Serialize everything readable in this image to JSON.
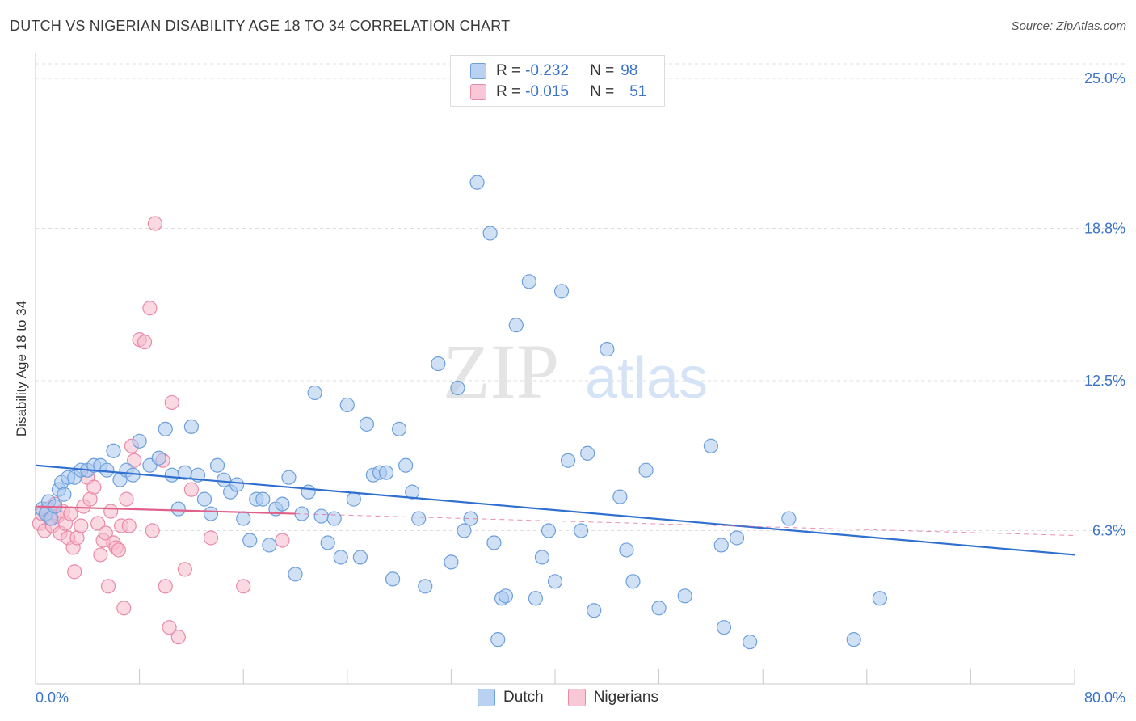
{
  "title": "DUTCH VS NIGERIAN DISABILITY AGE 18 TO 34 CORRELATION CHART",
  "source": "Source: ZipAtlas.com",
  "watermark": {
    "zip": "ZIP",
    "atlas": "atlas"
  },
  "colors": {
    "dutch_fill": "#a9c8ef",
    "dutch_stroke": "#6c9fdc",
    "dutch_line": "#2f6fcf",
    "nigerian_fill": "#f7b9cc",
    "nigerian_stroke": "#e98aa8",
    "nigerian_line": "#e0608a",
    "tick_label": "#3a73c8"
  },
  "legend": {
    "dutch": {
      "r_label": "R =",
      "r_value": "-0.232",
      "n_label": "N =",
      "n_value": "98"
    },
    "nigerians": {
      "r_label": "R =",
      "r_value": "-0.015",
      "n_label": "N =",
      "n_value": "51"
    }
  },
  "chart_data": {
    "type": "scatter",
    "title": "DUTCH VS NIGERIAN DISABILITY AGE 18 TO 34 CORRELATION CHART",
    "xlabel": "",
    "ylabel": "Disability Age 18 to 34",
    "xlim": [
      0,
      80
    ],
    "ylim": [
      0,
      25
    ],
    "x_tick_labels": [
      "0.0%",
      "80.0%"
    ],
    "y_ticks": [
      6.3,
      12.5,
      18.8,
      25.0
    ],
    "y_tick_labels": [
      "6.3%",
      "12.5%",
      "18.8%",
      "25.0%"
    ],
    "grid": true,
    "legend_position": "top-center",
    "series": [
      {
        "name": "Dutch",
        "trend": {
          "x": [
            0,
            80
          ],
          "y": [
            9.0,
            5.3
          ]
        },
        "points": [
          [
            0.5,
            7.2
          ],
          [
            0.8,
            7.0
          ],
          [
            1.0,
            7.5
          ],
          [
            1.2,
            6.8
          ],
          [
            1.5,
            7.3
          ],
          [
            1.8,
            8.0
          ],
          [
            2.0,
            8.3
          ],
          [
            2.2,
            7.8
          ],
          [
            2.5,
            8.5
          ],
          [
            3.0,
            8.5
          ],
          [
            3.5,
            8.8
          ],
          [
            4.0,
            8.8
          ],
          [
            4.5,
            9.0
          ],
          [
            5.0,
            9.0
          ],
          [
            5.5,
            8.8
          ],
          [
            6.0,
            9.6
          ],
          [
            6.5,
            8.4
          ],
          [
            7.0,
            8.8
          ],
          [
            7.5,
            8.6
          ],
          [
            8.0,
            10.0
          ],
          [
            8.8,
            9.0
          ],
          [
            9.5,
            9.3
          ],
          [
            10.0,
            10.5
          ],
          [
            10.5,
            8.6
          ],
          [
            11.0,
            7.2
          ],
          [
            11.5,
            8.7
          ],
          [
            12.0,
            10.6
          ],
          [
            12.5,
            8.6
          ],
          [
            13.0,
            7.6
          ],
          [
            13.5,
            7.0
          ],
          [
            14.0,
            9.0
          ],
          [
            14.5,
            8.4
          ],
          [
            15.0,
            7.9
          ],
          [
            15.5,
            8.2
          ],
          [
            16.0,
            6.8
          ],
          [
            16.5,
            5.9
          ],
          [
            17.0,
            7.6
          ],
          [
            17.5,
            7.6
          ],
          [
            18.0,
            5.7
          ],
          [
            18.5,
            7.2
          ],
          [
            19.0,
            7.4
          ],
          [
            19.5,
            8.5
          ],
          [
            20.0,
            4.5
          ],
          [
            20.5,
            7.0
          ],
          [
            21.0,
            7.9
          ],
          [
            21.5,
            12.0
          ],
          [
            22.0,
            6.9
          ],
          [
            22.5,
            5.8
          ],
          [
            23.0,
            6.8
          ],
          [
            23.5,
            5.2
          ],
          [
            24.0,
            11.5
          ],
          [
            24.5,
            7.6
          ],
          [
            25.0,
            5.2
          ],
          [
            25.5,
            10.7
          ],
          [
            26.0,
            8.6
          ],
          [
            26.5,
            8.7
          ],
          [
            27.0,
            8.7
          ],
          [
            27.5,
            4.3
          ],
          [
            28.0,
            10.5
          ],
          [
            28.5,
            9.0
          ],
          [
            29.0,
            7.9
          ],
          [
            29.5,
            6.8
          ],
          [
            30.0,
            4.0
          ],
          [
            31.0,
            13.2
          ],
          [
            32.0,
            5.0
          ],
          [
            32.5,
            12.2
          ],
          [
            33.0,
            6.3
          ],
          [
            33.5,
            6.8
          ],
          [
            34.0,
            20.7
          ],
          [
            35.0,
            18.6
          ],
          [
            35.3,
            5.8
          ],
          [
            35.6,
            1.8
          ],
          [
            35.9,
            3.5
          ],
          [
            36.2,
            3.6
          ],
          [
            37.0,
            14.8
          ],
          [
            38.0,
            16.6
          ],
          [
            38.5,
            3.5
          ],
          [
            39.0,
            5.2
          ],
          [
            39.5,
            6.3
          ],
          [
            40.0,
            4.2
          ],
          [
            40.5,
            16.2
          ],
          [
            41.0,
            9.2
          ],
          [
            42.0,
            6.3
          ],
          [
            42.5,
            9.5
          ],
          [
            43.0,
            3.0
          ],
          [
            44.0,
            13.8
          ],
          [
            45.0,
            7.7
          ],
          [
            45.5,
            5.5
          ],
          [
            46.0,
            4.2
          ],
          [
            47.0,
            8.8
          ],
          [
            48.0,
            3.1
          ],
          [
            50.0,
            3.6
          ],
          [
            52.0,
            9.8
          ],
          [
            53.0,
            2.3
          ],
          [
            54.0,
            6.0
          ],
          [
            55.0,
            1.7
          ],
          [
            58.0,
            6.8
          ],
          [
            63.0,
            1.8
          ],
          [
            65.0,
            3.5
          ],
          [
            52.8,
            5.7
          ]
        ]
      },
      {
        "name": "Nigerians",
        "trend": {
          "x": [
            0,
            20
          ],
          "y": [
            7.3,
            7.0
          ]
        },
        "points": [
          [
            0.3,
            6.6
          ],
          [
            0.5,
            7.0
          ],
          [
            0.7,
            6.3
          ],
          [
            0.9,
            7.2
          ],
          [
            1.1,
            6.8
          ],
          [
            1.3,
            6.5
          ],
          [
            1.5,
            7.4
          ],
          [
            1.7,
            6.9
          ],
          [
            1.9,
            6.2
          ],
          [
            2.1,
            7.1
          ],
          [
            2.3,
            6.6
          ],
          [
            2.5,
            6.0
          ],
          [
            2.7,
            7.0
          ],
          [
            2.9,
            5.6
          ],
          [
            3.0,
            4.6
          ],
          [
            3.2,
            6.0
          ],
          [
            3.5,
            6.5
          ],
          [
            3.7,
            7.3
          ],
          [
            4.0,
            8.5
          ],
          [
            4.2,
            7.6
          ],
          [
            4.5,
            8.1
          ],
          [
            4.8,
            6.6
          ],
          [
            5.0,
            5.3
          ],
          [
            5.2,
            5.9
          ],
          [
            5.4,
            6.2
          ],
          [
            5.6,
            4.0
          ],
          [
            5.8,
            7.1
          ],
          [
            6.0,
            5.8
          ],
          [
            6.2,
            5.6
          ],
          [
            6.4,
            5.5
          ],
          [
            6.6,
            6.5
          ],
          [
            6.8,
            3.1
          ],
          [
            7.0,
            7.6
          ],
          [
            7.2,
            6.5
          ],
          [
            7.4,
            9.8
          ],
          [
            7.6,
            9.2
          ],
          [
            8.0,
            14.2
          ],
          [
            8.4,
            14.1
          ],
          [
            8.8,
            15.5
          ],
          [
            9.0,
            6.3
          ],
          [
            9.2,
            19.0
          ],
          [
            9.8,
            9.2
          ],
          [
            10.0,
            4.0
          ],
          [
            10.3,
            2.3
          ],
          [
            10.5,
            11.6
          ],
          [
            11.0,
            1.9
          ],
          [
            11.5,
            4.7
          ],
          [
            12.0,
            8.0
          ],
          [
            13.5,
            6.0
          ],
          [
            16.0,
            4.0
          ],
          [
            19.0,
            5.9
          ]
        ]
      }
    ]
  },
  "bottom_legend": {
    "dutch": "Dutch",
    "nigerians": "Nigerians"
  }
}
